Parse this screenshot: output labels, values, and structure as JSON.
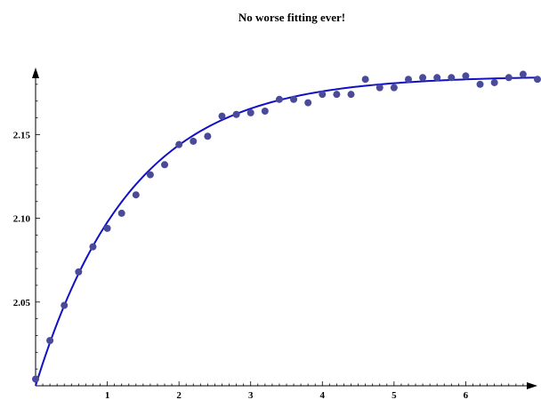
{
  "chart_data": {
    "type": "scatter",
    "title": "No worse fitting ever!",
    "xlabel": "",
    "ylabel": "",
    "xlim": [
      0,
      7
    ],
    "ylim": [
      2.0,
      2.19
    ],
    "x_ticks": [
      1,
      2,
      3,
      4,
      5,
      6
    ],
    "y_ticks": [
      2.05,
      2.1,
      2.15
    ],
    "y_tick_labels": [
      "2.05",
      "2.10",
      "2.15"
    ],
    "grid": false,
    "colors": {
      "points": "#4a4a9a",
      "fit": "#1010c8",
      "axes": "#000000"
    },
    "series": [
      {
        "kind": "points",
        "x": [
          0.0,
          0.2,
          0.4,
          0.6,
          0.8,
          1.0,
          1.2,
          1.4,
          1.6,
          1.8,
          2.0,
          2.2,
          2.4,
          2.6,
          2.8,
          3.0,
          3.2,
          3.4,
          3.6,
          3.8,
          4.0,
          4.2,
          4.4,
          4.6,
          4.8,
          5.0,
          5.2,
          5.4,
          5.6,
          5.8,
          6.0,
          6.2,
          6.4,
          6.6,
          6.8,
          7.0
        ],
        "y": [
          2.004,
          2.027,
          2.048,
          2.068,
          2.083,
          2.094,
          2.103,
          2.114,
          2.126,
          2.132,
          2.144,
          2.146,
          2.149,
          2.161,
          2.162,
          2.163,
          2.164,
          2.171,
          2.171,
          2.169,
          2.174,
          2.174,
          2.174,
          2.183,
          2.178,
          2.178,
          2.183,
          2.184,
          2.184,
          2.184,
          2.185,
          2.18,
          2.181,
          2.184,
          2.186,
          2.183
        ]
      },
      {
        "kind": "fit",
        "model": "a - b*exp(-k*x)",
        "params": {
          "a": 2.185,
          "b": 0.185,
          "k": 0.75
        }
      }
    ]
  }
}
